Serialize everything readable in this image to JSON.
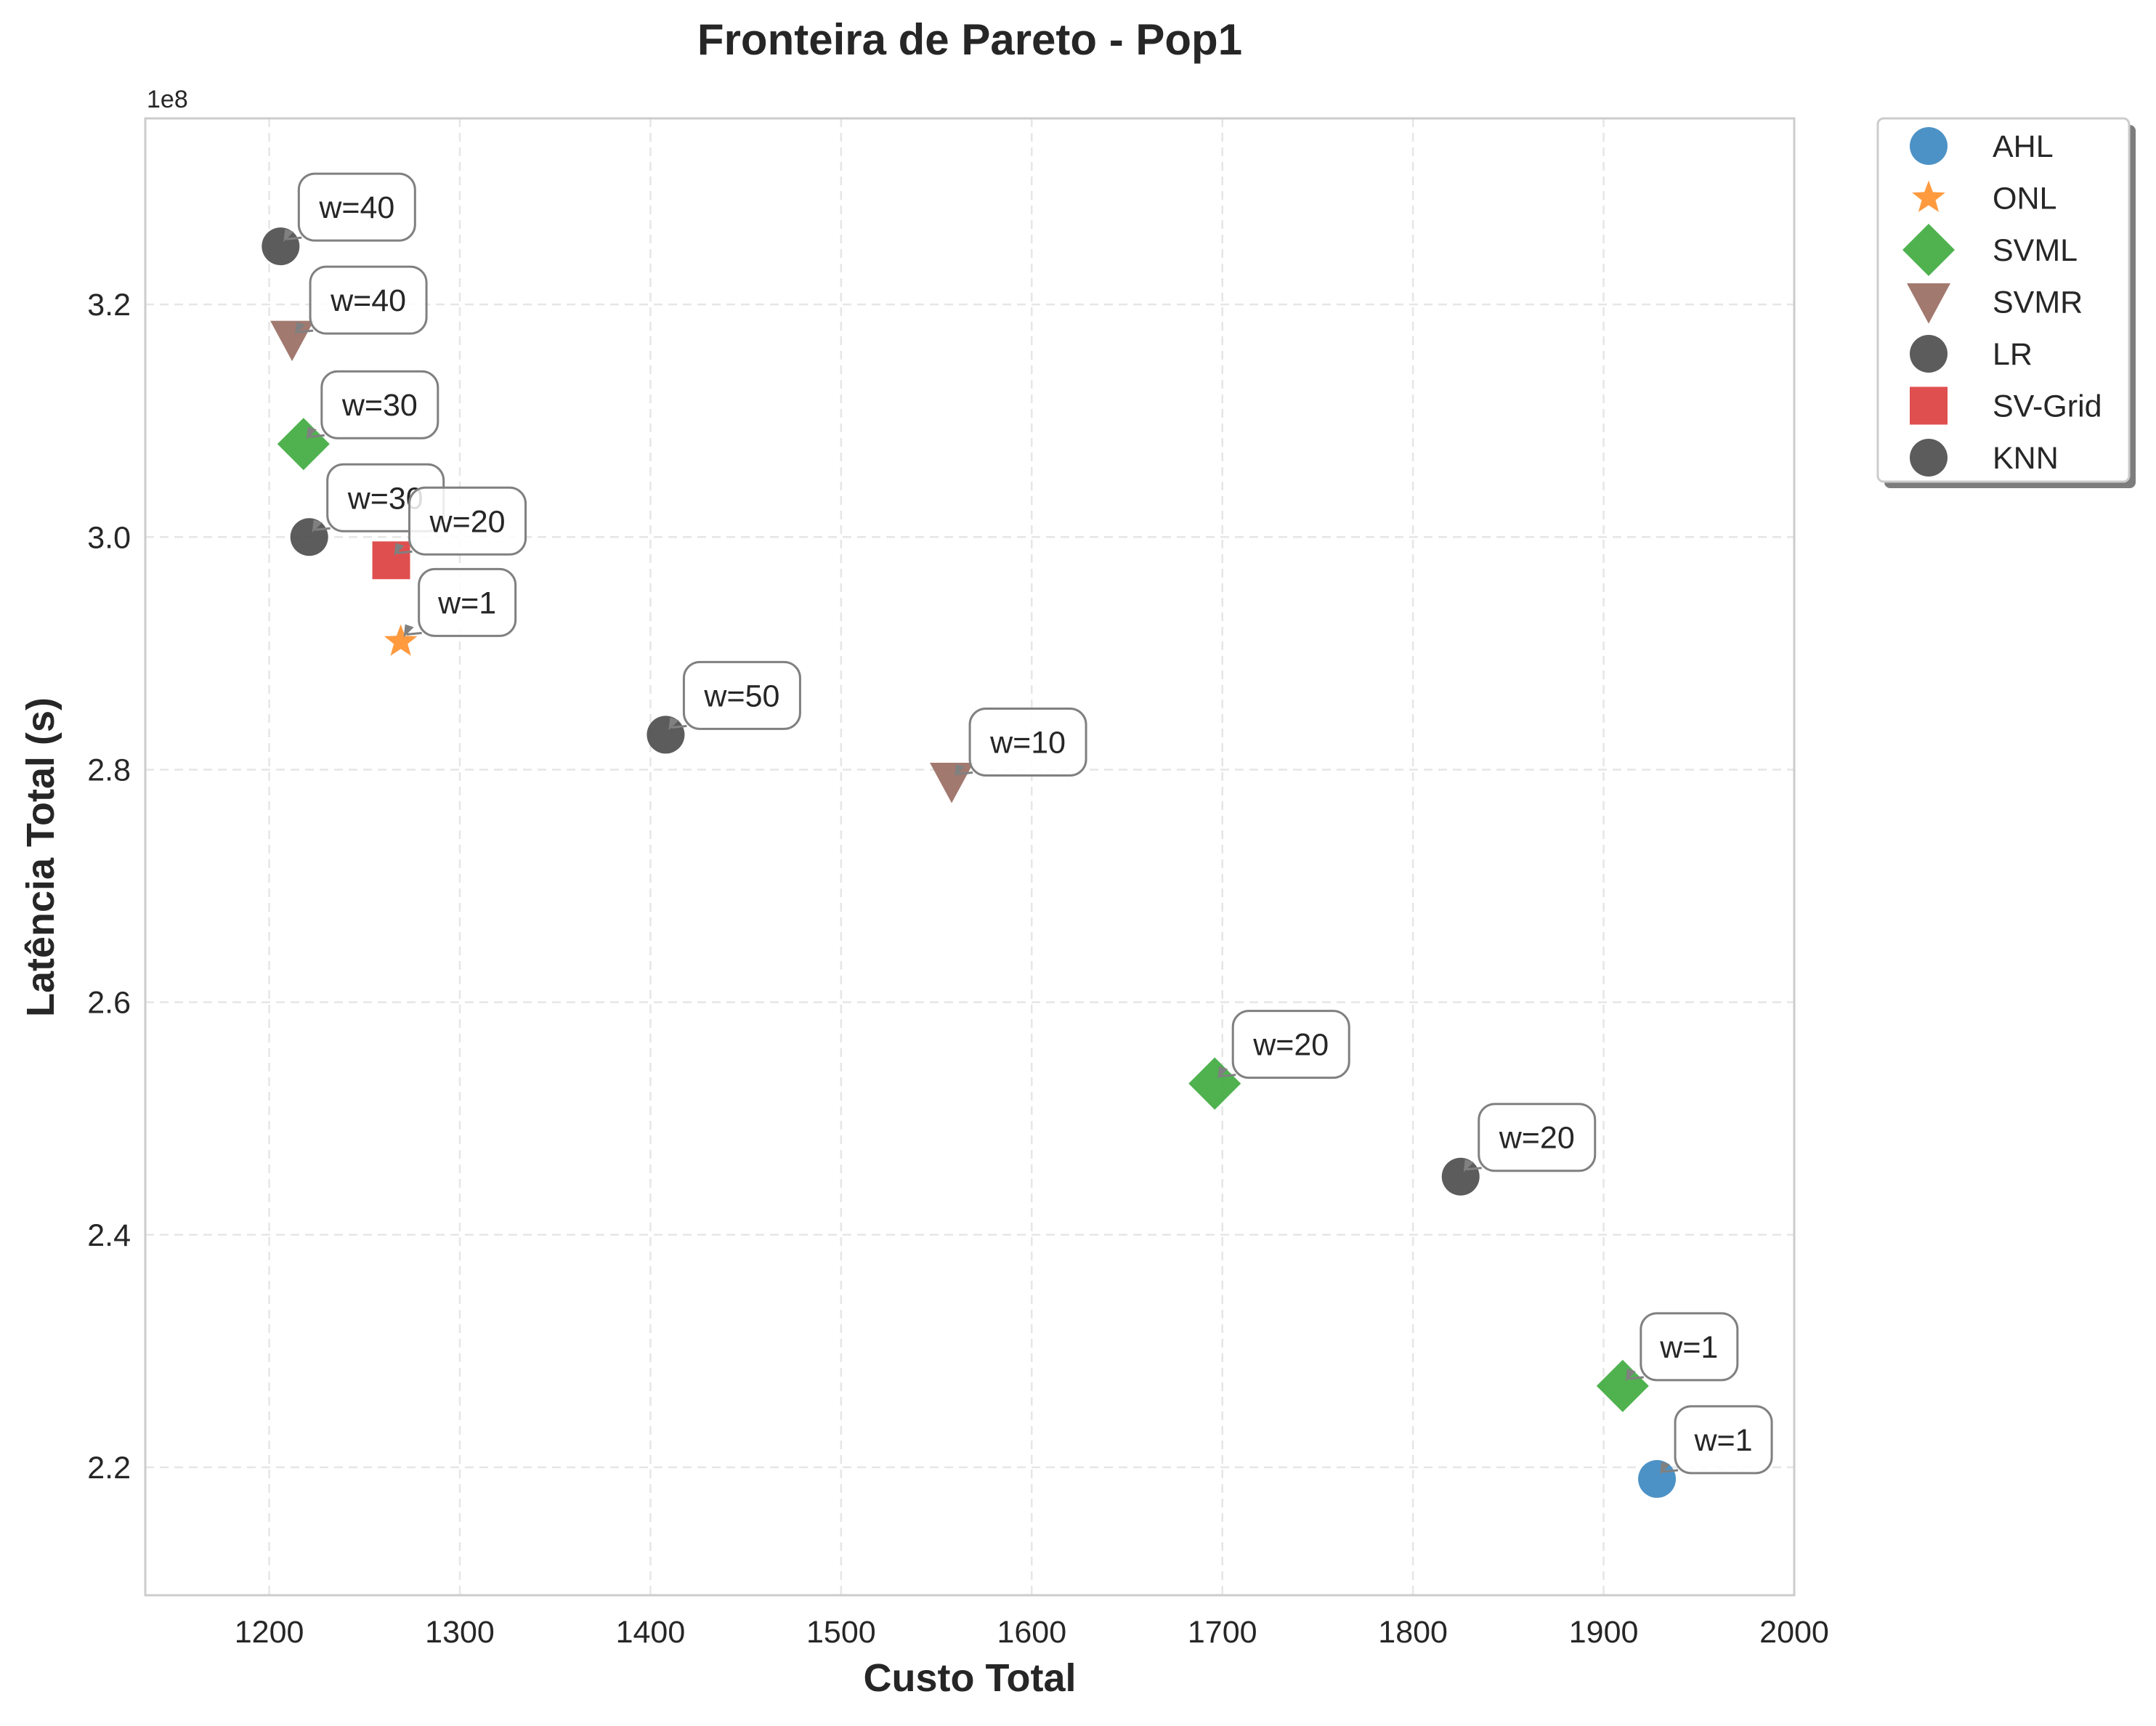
{
  "chart_data": {
    "type": "scatter",
    "title": "Fronteira de Pareto - Pop1",
    "xlabel": "Custo Total",
    "ylabel": "Latência Total (s)",
    "y_offset_label": "1e8",
    "xlim": [
      1135,
      2000
    ],
    "ylim": [
      2.09,
      3.36
    ],
    "x_ticks": [
      "1200",
      "1300",
      "1400",
      "1500",
      "1600",
      "1700",
      "1800",
      "1900",
      "2000"
    ],
    "y_ticks": [
      "2.2",
      "2.4",
      "2.6",
      "2.8",
      "3.0",
      "3.2"
    ],
    "grid": true,
    "legend_position": "outside-top-right",
    "series": [
      {
        "name": "AHL",
        "marker": "circle",
        "color": "#3a86c0",
        "points": [
          {
            "x": 1928,
            "y": 2.19,
            "label": "w=1"
          }
        ]
      },
      {
        "name": "ONL",
        "marker": "star",
        "color": "#ff8f2a",
        "points": [
          {
            "x": 1269,
            "y": 2.91,
            "label": "w=1"
          }
        ]
      },
      {
        "name": "SVML",
        "marker": "diamond",
        "color": "#3caa3c",
        "points": [
          {
            "x": 1218,
            "y": 3.08,
            "label": "w=30"
          },
          {
            "x": 1696,
            "y": 2.53,
            "label": "w=20"
          },
          {
            "x": 1910,
            "y": 2.27,
            "label": "w=1"
          }
        ]
      },
      {
        "name": "SVMR",
        "marker": "triangle-down",
        "color": "#986a5f",
        "points": [
          {
            "x": 1212,
            "y": 3.17,
            "label": "w=40"
          },
          {
            "x": 1558,
            "y": 2.79,
            "label": "w=10"
          }
        ]
      },
      {
        "name": "LR",
        "marker": "circle",
        "color": "#4a4a4a",
        "points": [
          {
            "x": 1206,
            "y": 3.25,
            "label": "w=40"
          },
          {
            "x": 1221,
            "y": 3.0,
            "label": "w=30"
          }
        ]
      },
      {
        "name": "SV-Grid",
        "marker": "square",
        "color": "#dd3c3c",
        "points": [
          {
            "x": 1264,
            "y": 2.98,
            "label": "w=20"
          }
        ]
      },
      {
        "name": "KNN",
        "marker": "circle",
        "color": "#4a4a4a",
        "points": [
          {
            "x": 1408,
            "y": 2.83,
            "label": "w=50"
          },
          {
            "x": 1825,
            "y": 2.45,
            "label": "w=20"
          }
        ]
      }
    ]
  }
}
